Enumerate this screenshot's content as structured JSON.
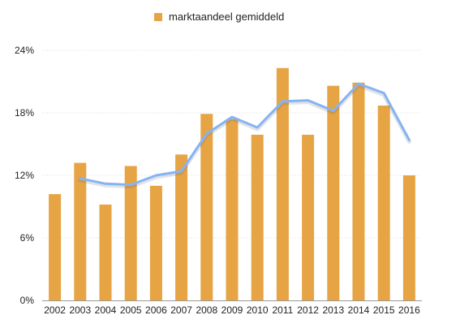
{
  "chart_data": {
    "type": "bar",
    "categories": [
      "2002",
      "2003",
      "2004",
      "2005",
      "2006",
      "2007",
      "2008",
      "2009",
      "2010",
      "2011",
      "2012",
      "2013",
      "2014",
      "2015",
      "2016"
    ],
    "series": [
      {
        "name": "marktaandeel gemiddeld",
        "type": "bar",
        "color": "#E7A444",
        "values": [
          10.2,
          13.2,
          9.2,
          12.9,
          11.0,
          14.0,
          17.9,
          17.4,
          15.9,
          22.3,
          15.9,
          20.6,
          20.9,
          18.7,
          12.0
        ]
      },
      {
        "type": "line",
        "color": "#86B3F2",
        "values": [
          null,
          11.7,
          11.2,
          11.1,
          12.0,
          12.4,
          16.0,
          17.6,
          16.6,
          19.1,
          19.2,
          18.2,
          20.8,
          19.9,
          15.4
        ]
      }
    ],
    "yticks": [
      "0%",
      "6%",
      "12%",
      "18%",
      "24%"
    ],
    "ylim": [
      0,
      24
    ],
    "grid": true,
    "legend": "top-center",
    "title": "",
    "xlabel": "",
    "ylabel": ""
  }
}
